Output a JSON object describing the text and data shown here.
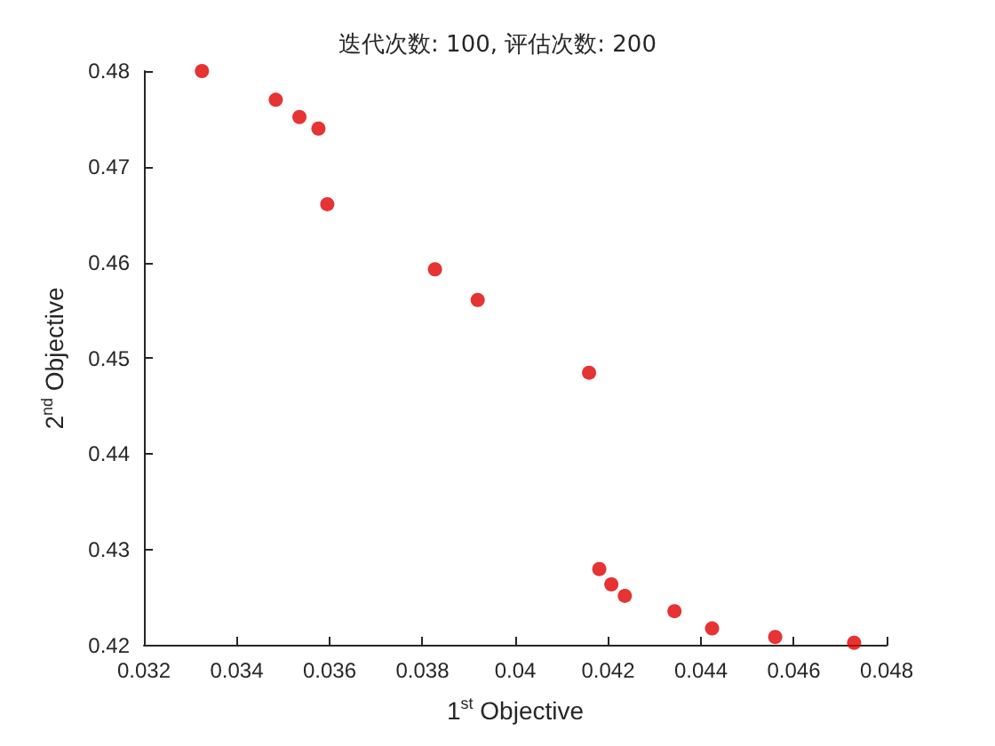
{
  "chart_data": {
    "type": "scatter",
    "title": "迭代次数: 100, 评估次数: 200",
    "xlabel": "1$^{st}$ Objective",
    "ylabel": "2$^{nd}$ Objective",
    "x": [
      0.03325,
      0.03484,
      0.03535,
      0.03576,
      0.03595,
      0.03827,
      0.03919,
      0.04159,
      0.04181,
      0.04207,
      0.04236,
      0.04343,
      0.04424,
      0.0456,
      0.0473
    ],
    "series": [
      {
        "color": "#e00000",
        "values": [
          0.48,
          0.477,
          0.4752,
          0.474,
          0.4661,
          0.4593,
          0.4561,
          0.4485,
          0.428,
          0.4264,
          0.4252,
          0.4236,
          0.4218,
          0.4209,
          0.4203
        ]
      }
    ],
    "xlim": [
      0.032,
      0.048
    ],
    "xticks": [
      0.032,
      0.034,
      0.036,
      0.038,
      0.04,
      0.042,
      0.044,
      0.046,
      0.048
    ],
    "ylim": [
      0.42,
      0.48
    ],
    "yticks": [
      0.42,
      0.43,
      0.44,
      0.45,
      0.46,
      0.47,
      0.48
    ],
    "grid": false,
    "marker": "circle"
  }
}
